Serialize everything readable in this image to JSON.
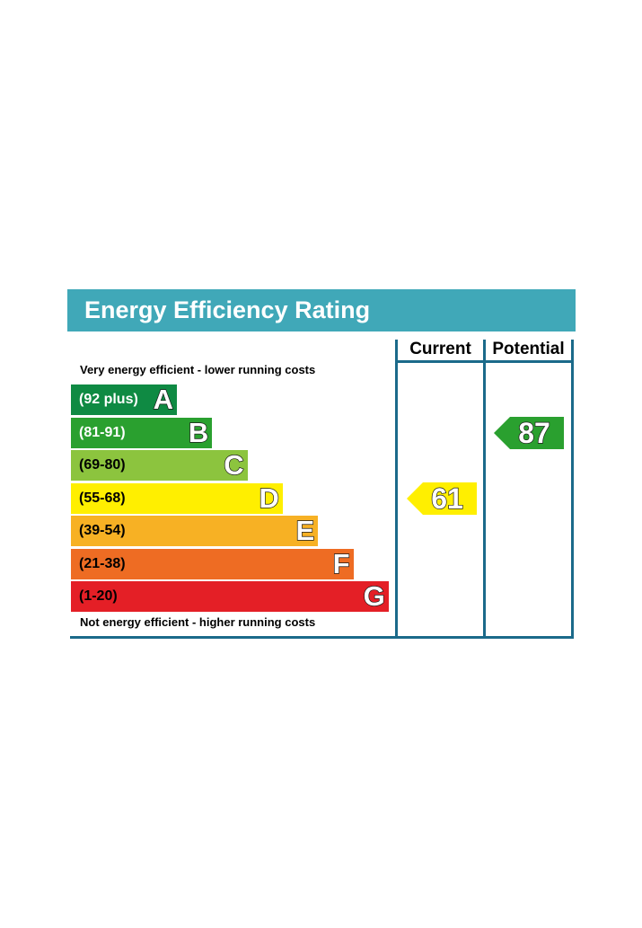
{
  "title": "Energy Efficiency Rating",
  "columns": {
    "current": "Current",
    "potential": "Potential"
  },
  "top_caption": "Very energy efficient - lower running costs",
  "bottom_caption": "Not energy efficient - higher running costs",
  "chart_data": {
    "type": "bar",
    "bands": [
      {
        "range": "(92 plus)",
        "letter": "A",
        "color": "#0f8a43",
        "text_color": "#ffffff"
      },
      {
        "range": "(81-91)",
        "letter": "B",
        "color": "#2aa02f",
        "text_color": "#ffffff"
      },
      {
        "range": "(69-80)",
        "letter": "C",
        "color": "#8cc43e",
        "text_color": "#000000"
      },
      {
        "range": "(55-68)",
        "letter": "D",
        "color": "#ffef00",
        "text_color": "#000000"
      },
      {
        "range": "(39-54)",
        "letter": "E",
        "color": "#f7b124",
        "text_color": "#000000"
      },
      {
        "range": "(21-38)",
        "letter": "F",
        "color": "#ee6c23",
        "text_color": "#000000"
      },
      {
        "range": "(1-20)",
        "letter": "G",
        "color": "#e41f26",
        "text_color": "#000000"
      }
    ],
    "current": {
      "value": "61",
      "band": "D",
      "color": "#ffef00"
    },
    "potential": {
      "value": "87",
      "band": "B",
      "color": "#2aa02f"
    }
  }
}
